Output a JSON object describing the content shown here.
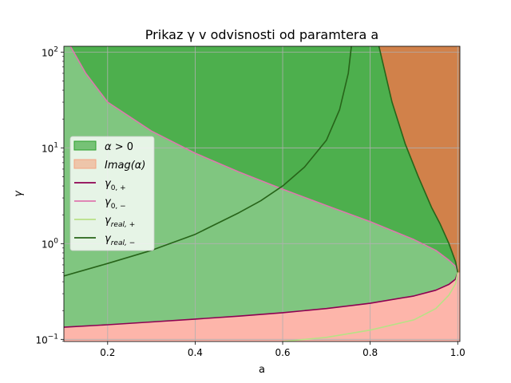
{
  "chart_data": {
    "type": "area",
    "title": "Prikaz γ v odvisnosti od paramtera a",
    "xlabel": "a",
    "ylabel": "γ",
    "xlim": [
      0.1,
      1.005
    ],
    "ylim": [
      0.095,
      115
    ],
    "yscale": "log",
    "grid": true,
    "legend_position": "center-left",
    "x_ticks": [
      {
        "value": 0.2,
        "label": "0.2"
      },
      {
        "value": 0.4,
        "label": "0.4"
      },
      {
        "value": 0.6,
        "label": "0.6"
      },
      {
        "value": 0.8,
        "label": "0.8"
      },
      {
        "value": 1.0,
        "label": "1.0"
      }
    ],
    "y_ticks": [
      {
        "value": 0.1,
        "base": "10",
        "exp": "−1"
      },
      {
        "value": 1,
        "base": "10",
        "exp": "0"
      },
      {
        "value": 10,
        "base": "10",
        "exp": "1"
      },
      {
        "value": 100,
        "base": "10",
        "exp": "2"
      }
    ],
    "series": [
      {
        "name": "α > 0",
        "kind": "fill",
        "color": "#2ca02c",
        "alpha": 0.6
      },
      {
        "name": "Imag(α)",
        "kind": "fill",
        "color": "#f4a582",
        "alpha": 0.6
      },
      {
        "name": "γ_{0, +}",
        "kind": "line",
        "color": "#8e0152",
        "points": [
          [
            0.1,
            0.134
          ],
          [
            0.2,
            0.142
          ],
          [
            0.3,
            0.152
          ],
          [
            0.4,
            0.163
          ],
          [
            0.5,
            0.175
          ],
          [
            0.6,
            0.19
          ],
          [
            0.7,
            0.21
          ],
          [
            0.8,
            0.238
          ],
          [
            0.9,
            0.284
          ],
          [
            0.95,
            0.326
          ],
          [
            0.98,
            0.375
          ],
          [
            0.995,
            0.425
          ],
          [
            1.0,
            0.5
          ]
        ]
      },
      {
        "name": "γ_{0, −}",
        "kind": "line",
        "color": "#de77ae",
        "points": [
          [
            0.115,
            115
          ],
          [
            0.15,
            60
          ],
          [
            0.2,
            30
          ],
          [
            0.3,
            15
          ],
          [
            0.4,
            8.8
          ],
          [
            0.5,
            5.6
          ],
          [
            0.6,
            3.7
          ],
          [
            0.7,
            2.5
          ],
          [
            0.8,
            1.7
          ],
          [
            0.9,
            1.1
          ],
          [
            0.95,
            0.85
          ],
          [
            0.98,
            0.67
          ],
          [
            0.995,
            0.58
          ],
          [
            1.0,
            0.5
          ]
        ]
      },
      {
        "name": "γ_{real, +}",
        "kind": "line",
        "color": "#b8e186",
        "points": [
          [
            0.6,
            0.095
          ],
          [
            0.7,
            0.105
          ],
          [
            0.8,
            0.125
          ],
          [
            0.9,
            0.16
          ],
          [
            0.95,
            0.21
          ],
          [
            0.98,
            0.29
          ],
          [
            0.995,
            0.38
          ],
          [
            1.0,
            0.5
          ]
        ]
      },
      {
        "name": "γ_{real, −}",
        "kind": "line",
        "color": "#276419",
        "points": [
          [
            0.1,
            0.46
          ],
          [
            0.2,
            0.62
          ],
          [
            0.3,
            0.85
          ],
          [
            0.4,
            1.25
          ],
          [
            0.5,
            2.1
          ],
          [
            0.55,
            2.8
          ],
          [
            0.6,
            4.0
          ],
          [
            0.65,
            6.3
          ],
          [
            0.7,
            12
          ],
          [
            0.73,
            25
          ],
          [
            0.75,
            60
          ],
          [
            0.757,
            115
          ]
        ]
      },
      {
        "name": "γ_{real, −} (upper branch)",
        "kind": "line",
        "color": "#276419",
        "points": [
          [
            0.82,
            115
          ],
          [
            0.85,
            30
          ],
          [
            0.88,
            11
          ],
          [
            0.91,
            5
          ],
          [
            0.94,
            2.4
          ],
          [
            0.96,
            1.6
          ],
          [
            0.98,
            1.0
          ],
          [
            0.995,
            0.65
          ],
          [
            1.0,
            0.5
          ]
        ]
      }
    ],
    "legend": [
      {
        "label": "α > 0",
        "italic_part": "α",
        "rest": " > 0",
        "sub": "",
        "kind": "fill",
        "color": "#2ca02c"
      },
      {
        "label": "Imag(α)",
        "italic_part": "Imag(α)",
        "rest": "",
        "sub": "",
        "kind": "fill",
        "color": "#f4a582"
      },
      {
        "label": "γ_{0, +}",
        "italic_part": "γ",
        "rest": "",
        "sub": "0, +",
        "kind": "line",
        "color": "#8e0152"
      },
      {
        "label": "γ_{0, −}",
        "italic_part": "γ",
        "rest": "",
        "sub": "0, −",
        "kind": "line",
        "color": "#de77ae"
      },
      {
        "label": "γ_{real, +}",
        "italic_part": "γ",
        "rest": "",
        "sub": "real, +",
        "kind": "line",
        "color": "#b8e186"
      },
      {
        "label": "γ_{real, −}",
        "italic_part": "γ",
        "rest": "",
        "sub": "real, −",
        "kind": "line",
        "color": "#276419"
      }
    ]
  }
}
